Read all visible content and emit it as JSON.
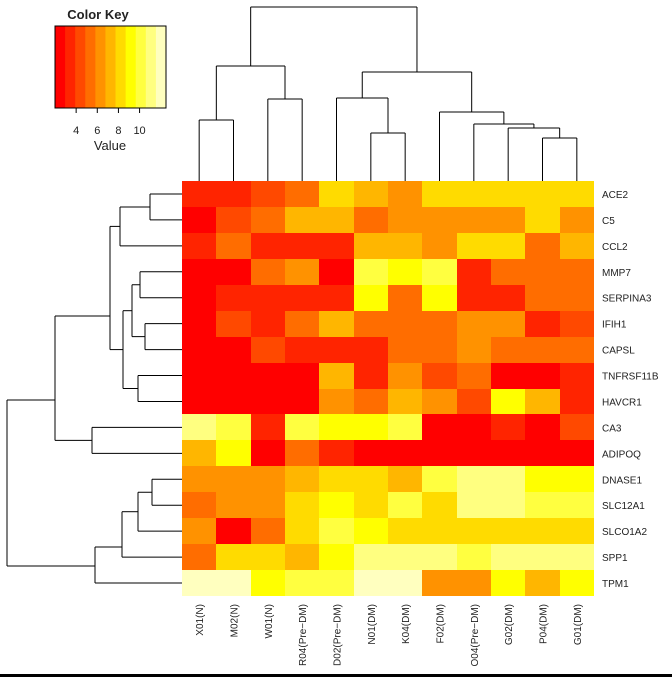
{
  "chart_data": {
    "type": "heatmap",
    "title": "",
    "color_key": {
      "title": "Color Key",
      "axis_label": "Value",
      "ticks": [
        4,
        6,
        8,
        10
      ],
      "range": [
        2,
        12.5
      ],
      "colors": [
        "#ff0000",
        "#ff2400",
        "#ff4900",
        "#ff6d00",
        "#ff9200",
        "#ffb600",
        "#ffdb00",
        "#ffff00",
        "#ffff40",
        "#ffff80",
        "#ffffbf"
      ]
    },
    "columns": [
      "X01(N)",
      "M02(N)",
      "W01(N)",
      "R04(Pre−DM)",
      "D02(Pre−DM)",
      "N01(DM)",
      "K04(DM)",
      "F02(DM)",
      "O04(Pre−DM)",
      "G02(DM)",
      "P04(DM)",
      "G01(DM)"
    ],
    "rows": [
      "ACE2",
      "C5",
      "CCL2",
      "MMP7",
      "SERPINA3",
      "IFIH1",
      "CAPSL",
      "TNFRSF11B",
      "HAVCR1",
      "CA3",
      "ADIPOQ",
      "DNASE1",
      "SLC12A1",
      "SLCO1A2",
      "SPP1",
      "TPM1"
    ],
    "values": [
      [
        3.5,
        3.5,
        4.5,
        5.5,
        8.5,
        7.5,
        6.5,
        8,
        8,
        8,
        8,
        8
      ],
      [
        2.5,
        4.5,
        5,
        7.5,
        7.5,
        5.5,
        6.5,
        6.5,
        6.5,
        6.5,
        8,
        6.5
      ],
      [
        3,
        5.5,
        3,
        3,
        3,
        7.5,
        7.5,
        6.5,
        8,
        8,
        5.5,
        7.5
      ],
      [
        2.5,
        2.5,
        5,
        6.5,
        2.5,
        10,
        9,
        10,
        3,
        5,
        5,
        5
      ],
      [
        2.5,
        3,
        3,
        3,
        3,
        9,
        5.5,
        9.5,
        3,
        3,
        5.5,
        5.5
      ],
      [
        2.5,
        4.5,
        3.5,
        5,
        7,
        5,
        5,
        5,
        6.5,
        6.5,
        3.5,
        4.5
      ],
      [
        2.5,
        2.5,
        4.5,
        3.5,
        3,
        3,
        5,
        5,
        6.5,
        5,
        5,
        5
      ],
      [
        2.5,
        2.5,
        2.5,
        2.5,
        7.5,
        3.5,
        6.5,
        4.5,
        5.5,
        2.5,
        2.5,
        3
      ],
      [
        2.5,
        2.5,
        2.5,
        2.5,
        6.5,
        5.5,
        7,
        6.5,
        4.5,
        9,
        7,
        3
      ],
      [
        11,
        10,
        3.5,
        10.5,
        9,
        9,
        10.5,
        2.5,
        2.5,
        3.5,
        2.5,
        4
      ],
      [
        7.5,
        9,
        2.5,
        5,
        3,
        2.5,
        2.5,
        2.5,
        2.5,
        2.5,
        2.5,
        2.5
      ],
      [
        6,
        6,
        6.5,
        7.5,
        8.5,
        8.5,
        7.5,
        10,
        11,
        11,
        9,
        9
      ],
      [
        5,
        6,
        6,
        8.5,
        9.5,
        8.5,
        10,
        8.5,
        11,
        11,
        10,
        10
      ],
      [
        6,
        2.5,
        5.5,
        8,
        10.5,
        9.5,
        8.5,
        8.5,
        8.5,
        8.5,
        8.5,
        8.5
      ],
      [
        5.5,
        8.5,
        8.5,
        7.5,
        9,
        11,
        11,
        11,
        10.5,
        11,
        11,
        11
      ],
      [
        12.5,
        12.5,
        9.5,
        10.5,
        10.5,
        12,
        12,
        6,
        6,
        9,
        7,
        9
      ]
    ]
  }
}
